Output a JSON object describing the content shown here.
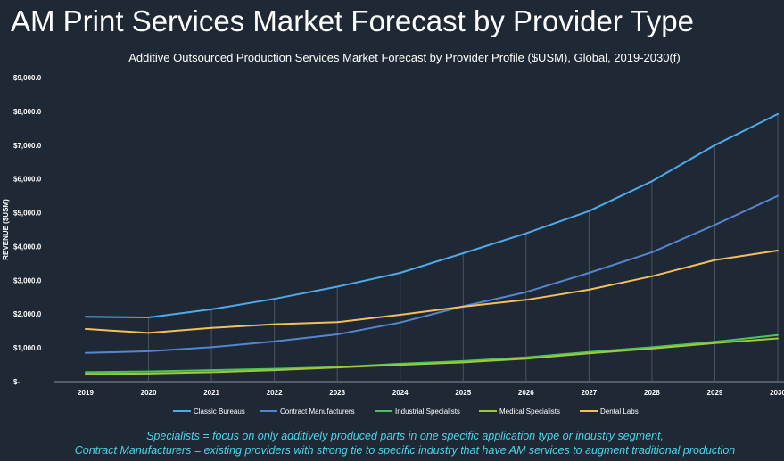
{
  "slide_title": "AM Print Services Market Forecast by Provider Type",
  "footnotes": [
    "Specialists = focus on only additively produced parts in one specific application type or industry segment,",
    "Contract Manufacturers = existing providers with strong tie to specific industry that have AM services to augment traditional production"
  ],
  "chart_data": {
    "type": "line",
    "title": "Additive Outsourced Production Services Market Forecast by Provider Profile ($USM), Global, 2019-2030(f)",
    "xlabel": "",
    "ylabel": "REVENUE ($USM)",
    "ylim": [
      0,
      9000
    ],
    "yticks": [
      0,
      1000,
      2000,
      3000,
      4000,
      5000,
      6000,
      7000,
      8000,
      9000
    ],
    "ytick_labels": [
      "$-",
      "$1,000.0",
      "$2,000.0",
      "$3,000.0",
      "$4,000.0",
      "$5,000.0",
      "$6,000.0",
      "$7,000.0",
      "$8,000.0",
      "$9,000.0"
    ],
    "categories": [
      "2019",
      "2020",
      "2021",
      "2022",
      "2023",
      "2024",
      "2025",
      "2026",
      "2027",
      "2028",
      "2029",
      "2030"
    ],
    "legend_position": "bottom",
    "series": [
      {
        "name": "Classic Bureaus",
        "color": "#4fa9ea",
        "values": [
          1920,
          1900,
          2140,
          2450,
          2810,
          3220,
          3800,
          4390,
          5050,
          5930,
          7000,
          7920
        ]
      },
      {
        "name": "Contract Manufacturers",
        "color": "#5585cf",
        "values": [
          850,
          900,
          1020,
          1190,
          1400,
          1750,
          2230,
          2650,
          3220,
          3830,
          4640,
          5500
        ]
      },
      {
        "name": "Industrial Specialists",
        "color": "#4cc35a",
        "values": [
          280,
          300,
          340,
          380,
          430,
          530,
          610,
          720,
          880,
          1020,
          1180,
          1380
        ]
      },
      {
        "name": "Medical Specialists",
        "color": "#a0c83a",
        "values": [
          230,
          240,
          280,
          340,
          420,
          500,
          570,
          680,
          840,
          980,
          1140,
          1280
        ]
      },
      {
        "name": "Dental Labs",
        "color": "#f2bf5c",
        "values": [
          1560,
          1440,
          1590,
          1700,
          1760,
          1980,
          2220,
          2420,
          2720,
          3120,
          3600,
          3880
        ]
      }
    ]
  }
}
